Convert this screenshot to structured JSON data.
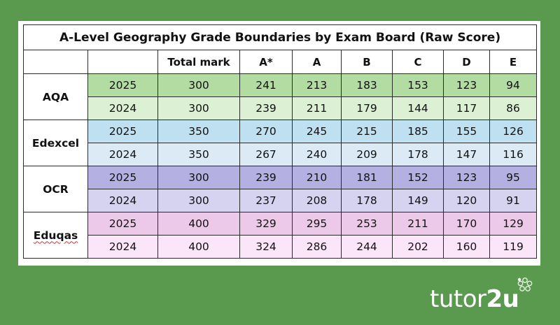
{
  "table": {
    "title": "A-Level Geography Grade Boundaries by Exam Board (Raw Score)",
    "columns": [
      "",
      "",
      "Total mark",
      "A*",
      "A",
      "B",
      "C",
      "D",
      "E"
    ],
    "boards": [
      {
        "name": "AQA",
        "colors": [
          "#b3dca3",
          "#dcf0d3"
        ],
        "rows": [
          {
            "year": "2025",
            "total": "300",
            "grades": [
              "241",
              "213",
              "183",
              "153",
              "123",
              "94"
            ]
          },
          {
            "year": "2024",
            "total": "300",
            "grades": [
              "239",
              "211",
              "179",
              "144",
              "117",
              "86"
            ]
          }
        ]
      },
      {
        "name": "Edexcel",
        "colors": [
          "#bfe0f1",
          "#dceaf6"
        ],
        "rows": [
          {
            "year": "2025",
            "total": "350",
            "grades": [
              "270",
              "245",
              "215",
              "185",
              "155",
              "126"
            ]
          },
          {
            "year": "2024",
            "total": "350",
            "grades": [
              "267",
              "240",
              "209",
              "178",
              "147",
              "116"
            ]
          }
        ]
      },
      {
        "name": "OCR",
        "colors": [
          "#b4b0e2",
          "#d6d3f1"
        ],
        "rows": [
          {
            "year": "2025",
            "total": "300",
            "grades": [
              "239",
              "210",
              "181",
              "152",
              "123",
              "95"
            ]
          },
          {
            "year": "2024",
            "total": "300",
            "grades": [
              "237",
              "208",
              "178",
              "149",
              "120",
              "91"
            ]
          }
        ]
      },
      {
        "name": "Eduqas",
        "colors": [
          "#edc9e9",
          "#fbe6f9"
        ],
        "rows": [
          {
            "year": "2025",
            "total": "400",
            "grades": [
              "329",
              "295",
              "253",
              "211",
              "170",
              "129"
            ]
          },
          {
            "year": "2024",
            "total": "400",
            "grades": [
              "324",
              "286",
              "244",
              "202",
              "160",
              "119"
            ]
          }
        ]
      }
    ]
  },
  "branding": {
    "logo_text_light": "tutor",
    "logo_text_bold": "2u",
    "background_color": "#5a9a4f"
  }
}
